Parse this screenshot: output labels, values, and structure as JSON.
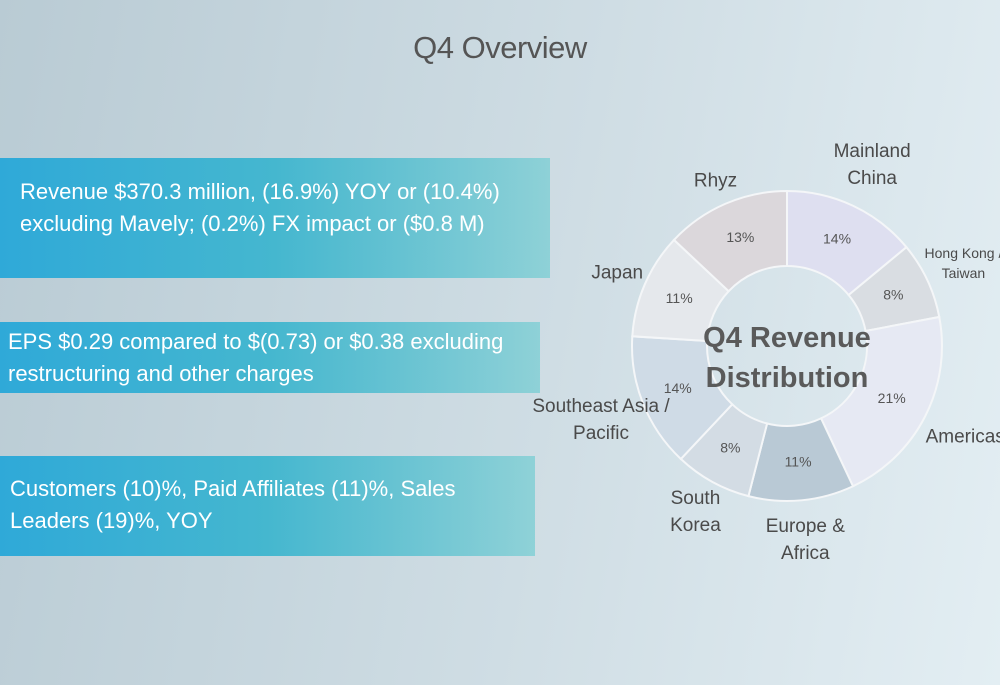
{
  "title": "Q4 Overview",
  "highlights": [
    "Revenue $370.3 million, (16.9%) YOY or (10.4%) excluding Mavely; (0.2%) FX impact or ($0.8 M)",
    "EPS $0.29 compared to $(0.73) or $0.38 excluding restructuring and other charges",
    "Customers (10)%, Paid Affiliates (11)%, Sales Leaders (19)%, YOY"
  ],
  "chart_data": {
    "type": "donut",
    "title": "Q4 Revenue Distribution",
    "categories": [
      "Mainland China",
      "Hong Kong / Taiwan",
      "Americas",
      "Europe & Africa",
      "South Korea",
      "Southeast Asia / Pacific",
      "Japan",
      "Rhyz"
    ],
    "values": [
      14,
      8,
      21,
      11,
      8,
      14,
      11,
      13
    ],
    "value_labels": [
      "14%",
      "8%",
      "21%",
      "11%",
      "8%",
      "14%",
      "11%",
      "13%"
    ],
    "colors": [
      "#dedff0",
      "#d9dde2",
      "#e6e9f3",
      "#b9c9d5",
      "#d3dce4",
      "#cfdbe6",
      "#e5e8ec",
      "#dbd7db"
    ]
  }
}
